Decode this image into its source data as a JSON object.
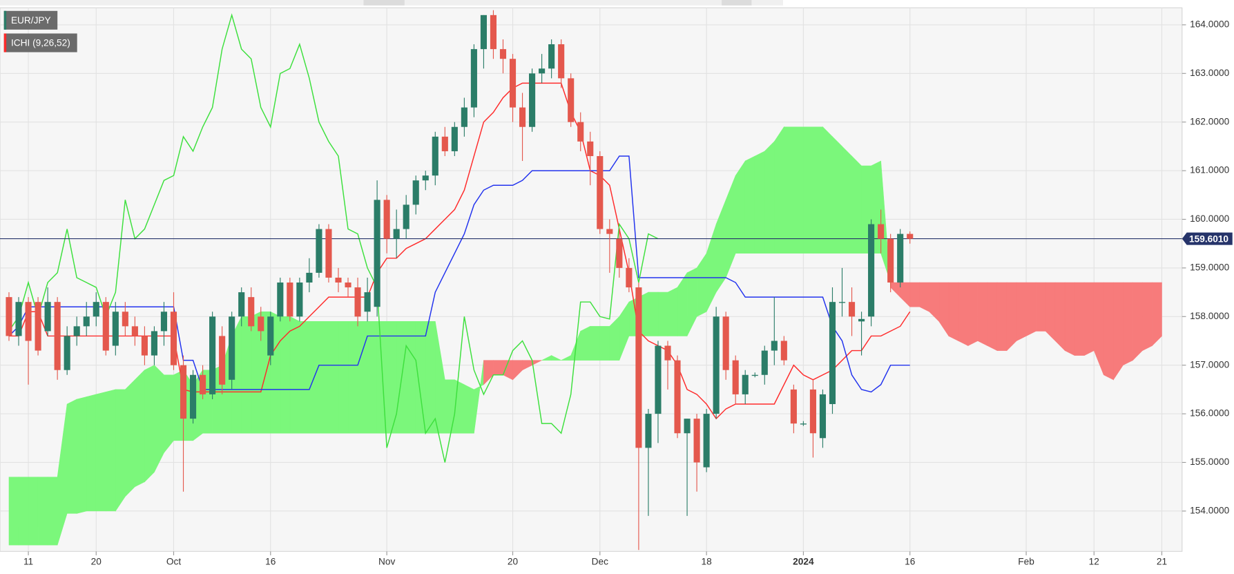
{
  "chart_data": {
    "type": "candlestick",
    "symbol": "EUR/JPY",
    "indicator": "ICHI (9,26,52)",
    "categories": [
      null,
      null,
      "11",
      null,
      null,
      null,
      null,
      null,
      null,
      "20",
      null,
      null,
      null,
      null,
      null,
      null,
      null,
      "Oct",
      null,
      null,
      null,
      null,
      null,
      null,
      null,
      null,
      null,
      "16",
      null,
      null,
      null,
      null,
      null,
      null,
      null,
      null,
      null,
      null,
      null,
      "Nov",
      null,
      null,
      null,
      null,
      null,
      null,
      null,
      null,
      null,
      null,
      null,
      null,
      "20",
      null,
      null,
      null,
      null,
      null,
      null,
      null,
      null,
      "Dec",
      null,
      null,
      null,
      null,
      null,
      null,
      null,
      null,
      null,
      null,
      "18",
      null,
      null,
      null,
      null,
      null,
      null,
      null,
      null,
      null,
      "2024",
      null,
      null,
      null,
      null,
      null,
      null,
      null,
      null,
      null,
      null,
      "16",
      null,
      null,
      null,
      null,
      null,
      null,
      null,
      null,
      null,
      null,
      null,
      "Feb",
      null,
      null,
      null,
      null,
      null,
      null,
      "12",
      null,
      null,
      null,
      null,
      null,
      null,
      "21"
    ],
    "open": [
      158.4,
      157.6,
      158.3,
      158.3,
      157.7,
      158.3,
      156.9,
      157.6,
      157.8,
      158.0,
      158.3,
      157.4,
      158.1,
      157.8,
      157.6,
      157.2,
      157.7,
      158.1,
      157.0,
      155.9,
      156.8,
      156.4,
      157.6,
      156.7,
      158.0,
      158.4,
      158.0,
      157.2,
      158.0,
      158.7,
      158.0,
      158.7,
      158.9,
      159.8,
      158.8,
      158.7,
      158.6,
      158.1,
      158.2,
      160.4,
      159.6,
      159.8,
      160.3,
      160.8,
      160.9,
      161.7,
      161.4,
      161.9,
      162.3,
      163.5,
      164.2,
      163.5,
      163.3,
      162.3,
      161.9,
      163.0,
      163.1,
      163.6,
      162.9,
      162.0,
      161.6,
      161.3,
      159.8,
      159.6,
      159.0,
      158.6,
      155.3,
      156.0,
      157.4,
      157.1,
      155.6,
      155.9,
      154.9,
      156.0,
      158.0,
      157.1,
      156.4,
      156.8,
      156.8,
      157.3,
      157.5,
      156.5,
      155.8,
      156.5,
      155.5,
      156.2,
      158.3,
      158.3,
      157.9,
      158.0,
      159.9,
      159.6,
      158.7,
      159.7,
      null,
      null,
      null,
      null,
      null,
      null,
      null,
      null,
      null,
      null,
      null,
      null,
      null,
      null,
      null,
      null,
      null,
      null,
      null,
      null,
      null,
      null,
      null,
      null,
      null,
      null
    ],
    "high": [
      158.5,
      158.4,
      158.4,
      158.4,
      158.6,
      158.4,
      157.8,
      158.0,
      158.3,
      158.5,
      158.4,
      158.3,
      158.3,
      158.0,
      157.8,
      157.8,
      158.3,
      158.5,
      157.2,
      156.9,
      157.0,
      158.1,
      157.8,
      158.1,
      158.6,
      158.6,
      158.2,
      158.1,
      158.8,
      158.8,
      158.8,
      159.2,
      159.9,
      159.9,
      159.0,
      158.8,
      158.8,
      158.8,
      160.8,
      160.5,
      160.2,
      160.5,
      160.9,
      161.0,
      161.8,
      161.9,
      162.0,
      162.5,
      163.6,
      164.2,
      164.3,
      163.7,
      163.4,
      162.6,
      163.1,
      163.4,
      163.7,
      163.7,
      163.0,
      162.2,
      161.8,
      161.4,
      160.0,
      159.8,
      159.2,
      158.7,
      156.1,
      157.5,
      157.5,
      157.2,
      155.9,
      156.0,
      156.1,
      158.2,
      158.1,
      157.2,
      156.9,
      156.85,
      157.4,
      158.4,
      157.6,
      156.6,
      155.85,
      156.7,
      156.5,
      158.6,
      159.0,
      158.6,
      158.1,
      160.0,
      160.2,
      159.7,
      159.8,
      159.75,
      null,
      null,
      null,
      null,
      null,
      null,
      null,
      null,
      null,
      null,
      null,
      null,
      null,
      null,
      null,
      null,
      null,
      null,
      null,
      null,
      null,
      null,
      null,
      null,
      null,
      null
    ],
    "low": [
      157.5,
      157.4,
      156.6,
      157.2,
      157.6,
      156.7,
      156.8,
      157.4,
      157.6,
      157.8,
      157.2,
      157.2,
      157.6,
      157.4,
      157.0,
      157.0,
      157.4,
      156.9,
      154.4,
      155.8,
      156.3,
      156.3,
      156.4,
      156.5,
      157.8,
      157.7,
      157.5,
      157.0,
      157.9,
      157.9,
      157.9,
      158.5,
      158.8,
      158.7,
      158.5,
      158.4,
      157.8,
      157.9,
      158.0,
      159.3,
      159.2,
      159.6,
      160.1,
      160.6,
      160.7,
      161.3,
      161.3,
      161.7,
      162.1,
      163.1,
      163.3,
      163.0,
      162.0,
      161.2,
      161.8,
      162.8,
      162.9,
      162.7,
      161.9,
      161.4,
      160.7,
      159.7,
      158.9,
      158.8,
      158.5,
      153.2,
      153.9,
      155.4,
      156.5,
      155.5,
      153.9,
      154.4,
      154.8,
      155.9,
      156.7,
      156.2,
      156.2,
      156.75,
      156.6,
      157.0,
      157.0,
      155.6,
      155.75,
      155.1,
      155.3,
      156.0,
      158.0,
      157.6,
      157.2,
      157.8,
      159.3,
      158.5,
      158.6,
      159.5,
      null,
      null,
      null,
      null,
      null,
      null,
      null,
      null,
      null,
      null,
      null,
      null,
      null,
      null,
      null,
      null,
      null,
      null,
      null,
      null,
      null,
      null,
      null,
      null,
      null,
      null
    ],
    "close": [
      157.6,
      158.3,
      157.5,
      157.3,
      158.3,
      156.9,
      157.6,
      157.8,
      158.0,
      158.3,
      157.3,
      158.1,
      157.8,
      157.6,
      157.2,
      157.7,
      158.1,
      157.0,
      155.9,
      156.8,
      156.4,
      158.0,
      156.6,
      158.0,
      158.5,
      157.8,
      157.7,
      158.0,
      158.7,
      158.0,
      158.7,
      158.9,
      159.8,
      158.8,
      158.7,
      158.6,
      158.0,
      158.5,
      160.4,
      159.6,
      159.8,
      160.3,
      160.8,
      160.9,
      161.7,
      161.4,
      161.9,
      162.3,
      163.5,
      164.2,
      163.5,
      163.3,
      162.3,
      161.9,
      163.0,
      163.1,
      163.6,
      162.9,
      162.0,
      161.6,
      161.3,
      159.8,
      159.7,
      159.0,
      158.6,
      155.3,
      156.0,
      157.4,
      157.1,
      155.6,
      155.9,
      155.0,
      156.0,
      158.0,
      156.9,
      156.4,
      156.8,
      156.8,
      157.3,
      157.5,
      157.1,
      155.8,
      155.8,
      155.6,
      156.4,
      158.3,
      158.3,
      158.0,
      157.95,
      159.9,
      159.6,
      158.7,
      159.7,
      159.6,
      null,
      null,
      null,
      null,
      null,
      null,
      null,
      null,
      null,
      null,
      null,
      null,
      null,
      null,
      null,
      null,
      null,
      null,
      null,
      null,
      null,
      null,
      null,
      null,
      null,
      null
    ],
    "up_color": "#2b7d68",
    "down_color": "#e4584d",
    "lines": [
      {
        "color": "#ff2b2b",
        "values": [
          157.6,
          157.6,
          158.1,
          158.1,
          157.6,
          157.6,
          157.6,
          157.6,
          157.6,
          157.6,
          157.6,
          157.6,
          157.6,
          157.6,
          157.6,
          157.6,
          157.6,
          157.6,
          156.5,
          156.45,
          156.45,
          156.45,
          156.45,
          156.45,
          156.45,
          156.45,
          156.45,
          157.2,
          157.5,
          157.7,
          157.8,
          158.0,
          158.2,
          158.4,
          158.4,
          158.4,
          158.4,
          158.4,
          158.9,
          159.2,
          159.2,
          159.4,
          159.5,
          159.6,
          159.8,
          160.0,
          160.2,
          160.6,
          161.3,
          162.0,
          162.2,
          162.5,
          162.7,
          162.8,
          162.8,
          162.8,
          162.8,
          162.8,
          162.2,
          161.8,
          161.0,
          160.9,
          160.7,
          159.8,
          158.9,
          157.7,
          157.5,
          157.4,
          157.3,
          157.0,
          156.5,
          156.4,
          156.2,
          155.9,
          156.1,
          156.2,
          156.2,
          156.2,
          156.2,
          156.2,
          156.6,
          157.0,
          156.8,
          156.7,
          156.8,
          156.9,
          157.1,
          157.3,
          157.3,
          157.6,
          157.6,
          157.7,
          157.8,
          158.1,
          null,
          null,
          null,
          null,
          null,
          null,
          null,
          null,
          null,
          null,
          null,
          null,
          null,
          null,
          null,
          null,
          null,
          null,
          null,
          null,
          null,
          null,
          null,
          null,
          null,
          null
        ]
      },
      {
        "color": "#2233ee",
        "values": [
          157.6,
          157.8,
          158.2,
          158.2,
          158.2,
          158.2,
          158.2,
          158.2,
          158.2,
          158.2,
          158.2,
          158.2,
          158.2,
          158.2,
          158.2,
          158.2,
          158.2,
          158.2,
          157.1,
          157.1,
          156.5,
          156.5,
          156.5,
          156.5,
          156.5,
          156.5,
          156.5,
          156.5,
          156.5,
          156.5,
          156.5,
          156.5,
          157.0,
          157.0,
          157.0,
          157.0,
          157.0,
          157.6,
          157.6,
          157.6,
          157.6,
          157.6,
          157.6,
          157.6,
          158.5,
          158.9,
          159.3,
          159.7,
          160.3,
          160.6,
          160.7,
          160.7,
          160.7,
          160.8,
          161.0,
          161.0,
          161.0,
          161.0,
          161.0,
          161.0,
          161.0,
          161.0,
          161.0,
          161.3,
          161.3,
          158.8,
          158.8,
          158.8,
          158.8,
          158.8,
          158.8,
          158.8,
          158.8,
          158.8,
          158.8,
          158.7,
          158.4,
          158.4,
          158.4,
          158.4,
          158.4,
          158.4,
          158.4,
          158.4,
          158.4,
          157.8,
          157.5,
          156.8,
          156.5,
          156.45,
          156.6,
          157.0,
          157.0,
          157.0,
          null,
          null,
          null,
          null,
          null,
          null,
          null,
          null,
          null,
          null,
          null,
          null,
          null,
          null,
          null,
          null,
          null,
          null,
          null,
          null,
          null,
          null,
          null,
          null,
          null,
          null
        ]
      },
      {
        "color": "#3ee03e",
        "values": [
          157.7,
          158.0,
          158.7,
          158.0,
          158.7,
          158.9,
          159.8,
          158.8,
          158.7,
          158.6,
          158.0,
          158.5,
          160.4,
          159.6,
          159.8,
          160.3,
          160.8,
          160.9,
          161.7,
          161.4,
          161.9,
          162.3,
          163.5,
          164.2,
          163.5,
          163.3,
          162.3,
          161.9,
          163.0,
          163.1,
          163.6,
          162.9,
          162.0,
          161.6,
          161.3,
          159.8,
          159.7,
          159.0,
          158.6,
          155.3,
          156.0,
          157.4,
          157.1,
          155.6,
          155.9,
          155.0,
          156.0,
          158.0,
          156.9,
          156.4,
          156.8,
          156.8,
          157.3,
          157.5,
          157.1,
          155.8,
          155.8,
          155.6,
          156.4,
          158.3,
          158.3,
          158.0,
          157.95,
          159.9,
          159.6,
          158.7,
          159.7,
          159.6,
          null,
          null,
          null,
          null,
          null,
          null,
          null,
          null,
          null,
          null,
          null,
          null,
          null,
          null,
          null,
          null,
          null,
          null,
          null,
          null,
          null,
          null,
          null,
          null,
          null,
          null,
          null,
          null,
          null,
          null,
          null,
          null,
          null,
          null,
          null,
          null,
          null,
          null,
          null,
          null,
          null,
          null,
          null,
          null,
          null,
          null,
          null,
          null,
          null,
          null,
          null,
          null
        ]
      }
    ],
    "cloud": {
      "up_color": "#7bf77b",
      "down_color": "#f77b7b",
      "span_a": [
        154.7,
        154.7,
        154.7,
        154.7,
        154.7,
        154.7,
        156.2,
        156.3,
        156.35,
        156.4,
        156.45,
        156.5,
        156.5,
        156.7,
        156.9,
        157.0,
        156.8,
        156.8,
        156.9,
        156.6,
        156.9,
        156.9,
        157.0,
        157.6,
        158.0,
        158.0,
        158.1,
        158.1,
        158.0,
        158.0,
        157.9,
        157.9,
        157.9,
        157.9,
        157.9,
        157.9,
        157.9,
        157.9,
        157.9,
        157.9,
        157.9,
        157.9,
        157.9,
        157.9,
        157.9,
        156.7,
        156.7,
        156.6,
        156.5,
        156.6,
        156.8,
        156.8,
        156.7,
        156.9,
        157.0,
        157.1,
        157.2,
        157.1,
        157.2,
        157.7,
        157.8,
        157.8,
        157.8,
        158.0,
        158.3,
        158.4,
        158.5,
        158.5,
        158.5,
        158.6,
        158.9,
        159.0,
        159.3,
        159.9,
        160.4,
        160.9,
        161.2,
        161.3,
        161.4,
        161.6,
        161.9,
        161.9,
        161.9,
        161.9,
        161.9,
        161.7,
        161.5,
        161.3,
        161.1,
        161.1,
        161.2,
        158.6,
        158.4,
        158.2,
        158.2,
        158.1,
        157.9,
        157.6,
        157.5,
        157.4,
        157.5,
        157.4,
        157.3,
        157.3,
        157.5,
        157.6,
        157.7,
        157.7,
        157.5,
        157.3,
        157.2,
        157.2,
        157.3,
        156.8,
        156.7,
        157.0,
        157.1,
        157.3,
        157.4,
        157.6
      ],
      "span_b": [
        153.3,
        153.3,
        153.3,
        153.3,
        153.3,
        153.3,
        153.95,
        153.95,
        154.0,
        154.0,
        154.0,
        154.0,
        154.3,
        154.5,
        154.6,
        154.8,
        155.2,
        155.45,
        155.45,
        155.45,
        155.6,
        155.6,
        155.6,
        155.6,
        155.6,
        155.6,
        155.6,
        155.6,
        155.6,
        155.6,
        155.6,
        155.6,
        155.6,
        155.6,
        155.6,
        155.6,
        155.6,
        155.6,
        155.6,
        155.6,
        155.6,
        155.6,
        155.6,
        155.6,
        155.6,
        155.6,
        155.6,
        155.6,
        155.6,
        157.1,
        157.1,
        157.1,
        157.1,
        157.1,
        157.1,
        157.1,
        157.1,
        157.1,
        157.1,
        157.1,
        157.1,
        157.1,
        157.1,
        157.1,
        157.6,
        157.6,
        157.6,
        157.6,
        157.6,
        157.6,
        157.6,
        158.0,
        158.1,
        158.5,
        158.8,
        159.3,
        159.3,
        159.3,
        159.3,
        159.3,
        159.3,
        159.3,
        159.3,
        159.3,
        159.3,
        159.3,
        159.3,
        159.3,
        159.3,
        159.3,
        159.3,
        158.7,
        158.7,
        158.7,
        158.7,
        158.7,
        158.7,
        158.7,
        158.7,
        158.7,
        158.7,
        158.7,
        158.7,
        158.7,
        158.7,
        158.7,
        158.7,
        158.7,
        158.7,
        158.7,
        158.7,
        158.7,
        158.7,
        158.7,
        158.7,
        158.7,
        158.7,
        158.7,
        158.7,
        158.7
      ]
    },
    "last_price": {
      "value": 159.601,
      "label": "159.6010",
      "color": "#26346a"
    },
    "ylim": [
      153.17,
      164.35
    ],
    "yticks": [
      {
        "value": 154,
        "label": "154.0000"
      },
      {
        "value": 155,
        "label": "155.0000"
      },
      {
        "value": 156,
        "label": "156.0000"
      },
      {
        "value": 157,
        "label": "157.0000"
      },
      {
        "value": 158,
        "label": "158.0000"
      },
      {
        "value": 159,
        "label": "159.0000"
      },
      {
        "value": 160,
        "label": "160.0000"
      },
      {
        "value": 161,
        "label": "161.0000"
      },
      {
        "value": 162,
        "label": "162.0000"
      },
      {
        "value": 163,
        "label": "163.0000"
      },
      {
        "value": 164,
        "label": "164.0000"
      }
    ],
    "grid": true
  }
}
